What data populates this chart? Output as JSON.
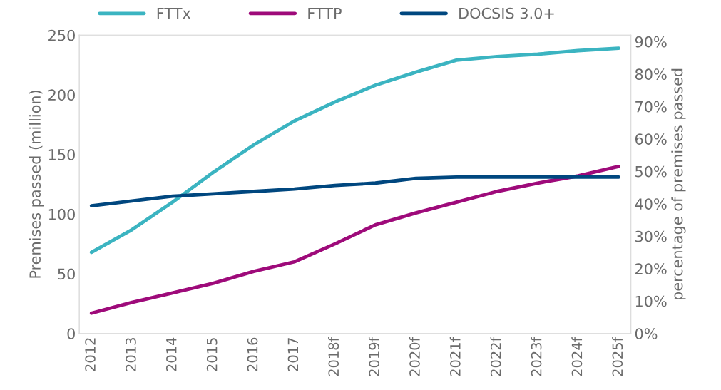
{
  "chart_data": {
    "type": "line",
    "ylabel": "Premises passed (million)",
    "y2label": "percentage of premises passed",
    "categories": [
      "2012",
      "2013",
      "2014",
      "2015",
      "2016",
      "2017",
      "2018f",
      "2019f",
      "2020f",
      "2021f",
      "2022f",
      "2023f",
      "2024f",
      "2025f"
    ],
    "series": [
      {
        "name": "FTTx",
        "color": "#3bb4c1",
        "values": [
          68,
          87,
          110,
          135,
          158,
          178,
          194,
          208,
          219,
          229,
          232,
          234,
          237,
          239
        ]
      },
      {
        "name": "FTTP",
        "color": "#9e0a7a",
        "values": [
          17,
          26,
          34,
          42,
          52,
          60,
          75,
          91,
          101,
          110,
          119,
          126,
          132,
          140
        ]
      },
      {
        "name": "DOCSIS 3.0+",
        "color": "#00477f",
        "values": [
          107,
          111,
          115,
          117,
          119,
          121,
          124,
          126,
          130,
          131,
          131,
          131,
          131,
          131
        ]
      }
    ],
    "ylim": [
      0,
      250
    ],
    "yticks": [
      0,
      50,
      100,
      150,
      200,
      250
    ],
    "y2lim": [
      0,
      92
    ],
    "y2ticks": [
      {
        "value": 0,
        "label": "0%"
      },
      {
        "value": 10,
        "label": "10%"
      },
      {
        "value": 20,
        "label": "20%"
      },
      {
        "value": 30,
        "label": "30%"
      },
      {
        "value": 40,
        "label": "40%"
      },
      {
        "value": 50,
        "label": "50%"
      },
      {
        "value": 60,
        "label": "60%"
      },
      {
        "value": 70,
        "label": "70%"
      },
      {
        "value": 80,
        "label": "80%"
      },
      {
        "value": 90,
        "label": "90%"
      }
    ],
    "legend": "top",
    "grid": false,
    "marker": "none",
    "line_style": "solid"
  }
}
